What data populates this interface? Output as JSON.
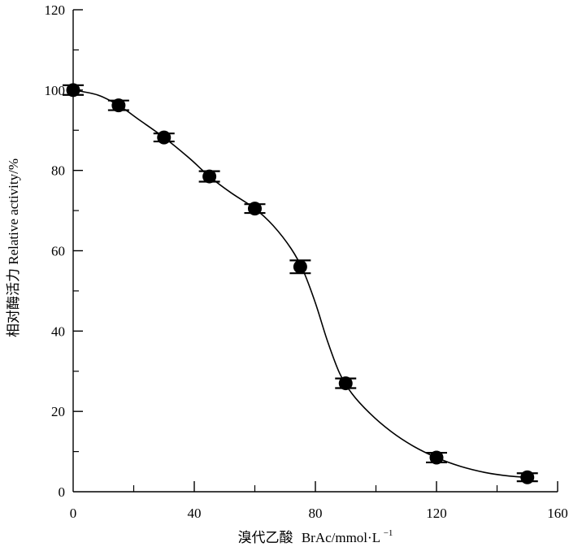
{
  "chart_data": {
    "type": "line",
    "xlabel_cn": "溴代乙酸",
    "xlabel_en": "BrAc/mmol·L",
    "xlabel_sup": "−1",
    "ylabel": "相对酶活力 Relative activity/%",
    "xlim": [
      0,
      160
    ],
    "ylim": [
      0,
      120
    ],
    "x_ticks": [
      0,
      40,
      80,
      120,
      160
    ],
    "x_minor_ticks": [
      20,
      60,
      100,
      140
    ],
    "y_ticks": [
      0,
      20,
      40,
      60,
      80,
      100,
      120
    ],
    "y_minor_ticks": [
      10,
      30,
      50,
      70,
      90,
      110
    ],
    "grid": false,
    "series": [
      {
        "x": [
          0,
          15,
          30,
          45,
          60,
          75,
          90,
          120,
          150
        ],
        "y": [
          100,
          96.2,
          88.2,
          78.5,
          70.5,
          56,
          27,
          8.5,
          3.6
        ],
        "error": [
          1.2,
          1.2,
          1.0,
          1.3,
          1.1,
          1.6,
          1.2,
          1.2,
          1.0
        ]
      }
    ],
    "curve": {
      "x": [
        0,
        8,
        15,
        22,
        30,
        38,
        45,
        52,
        60,
        66,
        72,
        76,
        80,
        84,
        88,
        92,
        98,
        105,
        112,
        120,
        128,
        136,
        144,
        150
      ],
      "y": [
        100,
        98.8,
        96.2,
        92.5,
        88.2,
        83.3,
        78.5,
        74.5,
        70.5,
        66.3,
        60.5,
        55,
        47,
        37.5,
        29.5,
        24.5,
        19.5,
        15,
        11.5,
        8.5,
        6.3,
        4.8,
        3.9,
        3.6
      ]
    },
    "colors": {
      "marker": "#000000",
      "line": "#000000",
      "axis": "#000000"
    }
  }
}
